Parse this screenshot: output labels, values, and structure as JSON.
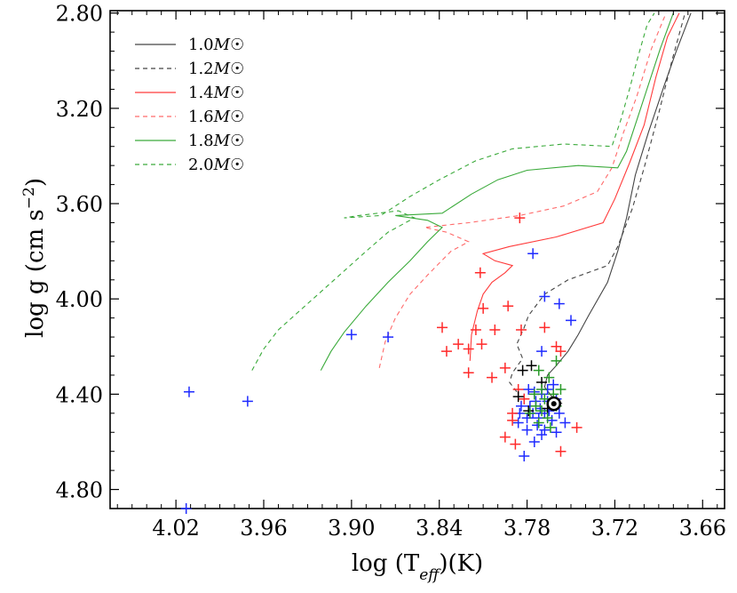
{
  "chart_data": {
    "type": "scatter",
    "title": "",
    "xlabel_main": "log (T",
    "xlabel_sub": "eff",
    "xlabel_tail": ")(K)",
    "ylabel_main": "log g (cm s",
    "ylabel_sup": "−2",
    "ylabel_tail": ")",
    "xlim": [
      4.065,
      3.645
    ],
    "ylim": [
      4.88,
      2.79
    ],
    "x_inverted": true,
    "y_inverted": true,
    "x_ticks": [
      4.02,
      3.96,
      3.9,
      3.84,
      3.78,
      3.72,
      3.66
    ],
    "x_tick_labels": [
      "4.02",
      "3.96",
      "3.90",
      "3.84",
      "3.78",
      "3.72",
      "3.66"
    ],
    "y_ticks": [
      2.8,
      3.2,
      3.6,
      4.0,
      4.4,
      4.8
    ],
    "y_tick_labels": [
      "2.80",
      "3.20",
      "3.60",
      "4.00",
      "4.40",
      "4.80"
    ],
    "legend_position": "top-left",
    "tracks": [
      {
        "name": "1.0M☉",
        "label_prefix": "1.0",
        "label_mass": "M",
        "label_sun": "☉",
        "color": "#444444",
        "dash": "solid",
        "points": [
          [
            3.756,
            4.44
          ],
          [
            3.763,
            4.41
          ],
          [
            3.768,
            4.37
          ],
          [
            3.766,
            4.32
          ],
          [
            3.76,
            4.28
          ],
          [
            3.752,
            4.22
          ],
          [
            3.745,
            4.15
          ],
          [
            3.738,
            4.07
          ],
          [
            3.725,
            3.93
          ],
          [
            3.718,
            3.8
          ],
          [
            3.712,
            3.66
          ],
          [
            3.706,
            3.48
          ],
          [
            3.697,
            3.3
          ],
          [
            3.686,
            3.1
          ],
          [
            3.678,
            2.96
          ],
          [
            3.668,
            2.8
          ]
        ]
      },
      {
        "name": "1.2M☉",
        "label_prefix": "1.2",
        "label_mass": "M",
        "label_sun": "☉",
        "color": "#444444",
        "dash": "dashed",
        "points": [
          [
            3.787,
            4.39
          ],
          [
            3.792,
            4.35
          ],
          [
            3.79,
            4.31
          ],
          [
            3.783,
            4.25
          ],
          [
            3.787,
            4.19
          ],
          [
            3.782,
            4.12
          ],
          [
            3.779,
            4.07
          ],
          [
            3.768,
            3.98
          ],
          [
            3.752,
            3.92
          ],
          [
            3.725,
            3.86
          ],
          [
            3.718,
            3.78
          ],
          [
            3.708,
            3.62
          ],
          [
            3.7,
            3.45
          ],
          [
            3.69,
            3.22
          ],
          [
            3.681,
            3.0
          ],
          [
            3.672,
            2.8
          ]
        ]
      },
      {
        "name": "1.4M☉",
        "label_prefix": "1.4",
        "label_mass": "M",
        "label_sun": "☉",
        "color": "#ff3b3b",
        "dash": "solid",
        "points": [
          [
            3.819,
            4.26
          ],
          [
            3.818,
            4.15
          ],
          [
            3.814,
            4.05
          ],
          [
            3.81,
            3.98
          ],
          [
            3.804,
            3.93
          ],
          [
            3.795,
            3.89
          ],
          [
            3.79,
            3.86
          ],
          [
            3.802,
            3.84
          ],
          [
            3.81,
            3.81
          ],
          [
            3.792,
            3.78
          ],
          [
            3.76,
            3.74
          ],
          [
            3.728,
            3.68
          ],
          [
            3.72,
            3.58
          ],
          [
            3.71,
            3.43
          ],
          [
            3.7,
            3.27
          ],
          [
            3.692,
            3.07
          ],
          [
            3.684,
            2.9
          ],
          [
            3.676,
            2.8
          ]
        ]
      },
      {
        "name": "1.6M☉",
        "label_prefix": "1.6",
        "label_mass": "M",
        "label_sun": "☉",
        "color": "#ff6a6a",
        "dash": "dashed",
        "points": [
          [
            3.881,
            4.29
          ],
          [
            3.877,
            4.18
          ],
          [
            3.87,
            4.08
          ],
          [
            3.86,
            3.98
          ],
          [
            3.848,
            3.9
          ],
          [
            3.832,
            3.8
          ],
          [
            3.82,
            3.76
          ],
          [
            3.835,
            3.72
          ],
          [
            3.85,
            3.7
          ],
          [
            3.82,
            3.68
          ],
          [
            3.785,
            3.65
          ],
          [
            3.755,
            3.61
          ],
          [
            3.732,
            3.55
          ],
          [
            3.722,
            3.45
          ],
          [
            3.714,
            3.3
          ],
          [
            3.705,
            3.15
          ],
          [
            3.695,
            2.95
          ],
          [
            3.685,
            2.8
          ]
        ]
      },
      {
        "name": "1.8M☉",
        "label_prefix": "1.8",
        "label_mass": "M",
        "label_sun": "☉",
        "color": "#3aaa3a",
        "dash": "solid",
        "points": [
          [
            3.921,
            4.3
          ],
          [
            3.914,
            4.22
          ],
          [
            3.905,
            4.14
          ],
          [
            3.89,
            4.03
          ],
          [
            3.875,
            3.93
          ],
          [
            3.86,
            3.84
          ],
          [
            3.848,
            3.76
          ],
          [
            3.838,
            3.7
          ],
          [
            3.848,
            3.67
          ],
          [
            3.87,
            3.65
          ],
          [
            3.838,
            3.64
          ],
          [
            3.818,
            3.56
          ],
          [
            3.8,
            3.5
          ],
          [
            3.78,
            3.46
          ],
          [
            3.745,
            3.44
          ],
          [
            3.718,
            3.45
          ],
          [
            3.712,
            3.38
          ],
          [
            3.705,
            3.25
          ],
          [
            3.697,
            3.1
          ],
          [
            3.689,
            2.95
          ],
          [
            3.68,
            2.8
          ]
        ]
      },
      {
        "name": "2.0M☉",
        "label_prefix": "2.0",
        "label_mass": "M",
        "label_sun": "☉",
        "color": "#3aaa3a",
        "dash": "dashed",
        "points": [
          [
            3.968,
            4.3
          ],
          [
            3.96,
            4.21
          ],
          [
            3.95,
            4.13
          ],
          [
            3.93,
            4.02
          ],
          [
            3.91,
            3.91
          ],
          [
            3.89,
            3.8
          ],
          [
            3.875,
            3.72
          ],
          [
            3.857,
            3.66
          ],
          [
            3.868,
            3.63
          ],
          [
            3.895,
            3.65
          ],
          [
            3.905,
            3.66
          ],
          [
            3.88,
            3.65
          ],
          [
            3.86,
            3.57
          ],
          [
            3.84,
            3.5
          ],
          [
            3.815,
            3.42
          ],
          [
            3.79,
            3.37
          ],
          [
            3.755,
            3.35
          ],
          [
            3.722,
            3.36
          ],
          [
            3.716,
            3.25
          ],
          [
            3.71,
            3.12
          ],
          [
            3.704,
            2.98
          ],
          [
            3.698,
            2.85
          ],
          [
            3.693,
            2.8
          ]
        ]
      }
    ],
    "series": [
      {
        "name": "blue stars",
        "color": "#1f2bff",
        "marker": "plus",
        "points": [
          [
            4.011,
            4.39
          ],
          [
            4.013,
            4.88
          ],
          [
            3.971,
            4.43
          ],
          [
            3.9,
            4.15
          ],
          [
            3.875,
            4.16
          ],
          [
            3.776,
            3.81
          ],
          [
            3.768,
            3.99
          ],
          [
            3.758,
            4.02
          ],
          [
            3.75,
            4.09
          ],
          [
            3.754,
            4.52
          ],
          [
            3.782,
            4.66
          ],
          [
            3.77,
            4.22
          ],
          [
            3.775,
            4.39
          ],
          [
            3.778,
            4.45
          ],
          [
            3.772,
            4.5
          ],
          [
            3.765,
            4.47
          ],
          [
            3.76,
            4.42
          ],
          [
            3.768,
            4.55
          ],
          [
            3.78,
            4.55
          ],
          [
            3.762,
            4.36
          ],
          [
            3.775,
            4.6
          ],
          [
            3.785,
            4.48
          ],
          [
            3.77,
            4.4
          ],
          [
            3.758,
            4.48
          ],
          [
            3.782,
            4.42
          ],
          [
            3.766,
            4.43
          ],
          [
            3.773,
            4.53
          ],
          [
            3.779,
            4.38
          ],
          [
            3.786,
            4.52
          ],
          [
            3.763,
            4.51
          ],
          [
            3.771,
            4.46
          ],
          [
            3.776,
            4.48
          ],
          [
            3.768,
            4.48
          ],
          [
            3.78,
            4.5
          ],
          [
            3.766,
            4.38
          ],
          [
            3.77,
            4.57
          ],
          [
            3.76,
            4.56
          ],
          [
            3.784,
            4.45
          ],
          [
            3.774,
            4.43
          ],
          [
            3.762,
            4.44
          ]
        ]
      },
      {
        "name": "red stars",
        "color": "#ff2a2a",
        "marker": "plus",
        "points": [
          [
            3.785,
            3.66
          ],
          [
            3.812,
            3.89
          ],
          [
            3.81,
            4.04
          ],
          [
            3.793,
            4.03
          ],
          [
            3.838,
            4.12
          ],
          [
            3.815,
            4.13
          ],
          [
            3.802,
            4.13
          ],
          [
            3.784,
            4.13
          ],
          [
            3.768,
            4.12
          ],
          [
            3.835,
            4.22
          ],
          [
            3.827,
            4.19
          ],
          [
            3.82,
            4.21
          ],
          [
            3.811,
            4.19
          ],
          [
            3.82,
            4.31
          ],
          [
            3.804,
            4.33
          ],
          [
            3.795,
            4.29
          ],
          [
            3.786,
            4.38
          ],
          [
            3.782,
            4.42
          ],
          [
            3.795,
            4.58
          ],
          [
            3.788,
            4.61
          ],
          [
            3.746,
            4.54
          ],
          [
            3.757,
            4.64
          ],
          [
            3.79,
            4.51
          ],
          [
            3.76,
            4.2
          ],
          [
            3.757,
            4.22
          ],
          [
            3.79,
            4.48
          ]
        ]
      },
      {
        "name": "black stars",
        "color": "#000000",
        "marker": "plus",
        "points": [
          [
            3.783,
            4.3
          ],
          [
            3.777,
            4.28
          ],
          [
            3.786,
            4.41
          ],
          [
            3.77,
            4.35
          ],
          [
            3.766,
            4.46
          ],
          [
            3.779,
            4.47
          ]
        ]
      },
      {
        "name": "green stars",
        "color": "#2a9a2a",
        "marker": "plus",
        "points": [
          [
            3.76,
            4.26
          ],
          [
            3.772,
            4.3
          ],
          [
            3.765,
            4.33
          ],
          [
            3.77,
            4.38
          ],
          [
            3.762,
            4.4
          ],
          [
            3.768,
            4.42
          ],
          [
            3.774,
            4.45
          ],
          [
            3.76,
            4.45
          ],
          [
            3.766,
            4.5
          ],
          [
            3.772,
            4.52
          ],
          [
            3.778,
            4.48
          ],
          [
            3.764,
            4.54
          ],
          [
            3.77,
            4.47
          ],
          [
            3.757,
            4.38
          ],
          [
            3.775,
            4.4
          ]
        ]
      }
    ],
    "sun": {
      "name": "Sun",
      "x": 3.7617,
      "y": 4.44,
      "marker": "circle-dot",
      "color": "#000000"
    }
  }
}
